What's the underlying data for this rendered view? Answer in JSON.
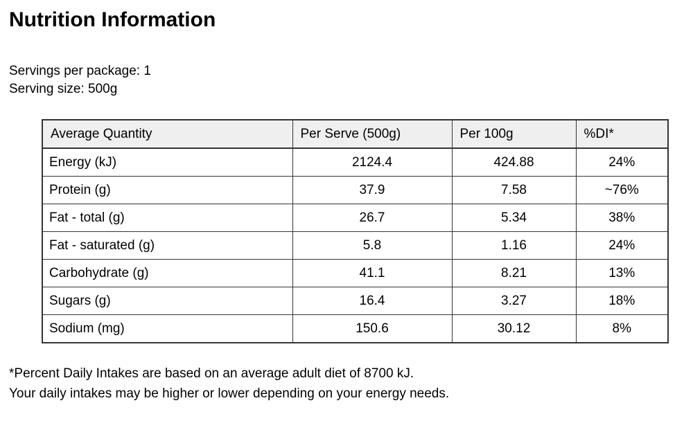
{
  "title": "Nutrition Information",
  "serving_info": {
    "servings_per_package": "Servings per package: 1",
    "serving_size": "Serving size: 500g"
  },
  "table": {
    "headers": [
      "Average Quantity",
      "Per Serve (500g)",
      "Per 100g",
      "%DI*"
    ],
    "rows": [
      [
        "Energy (kJ)",
        "2124.4",
        "424.88",
        "24%"
      ],
      [
        "Protein (g)",
        "37.9",
        "7.58",
        "~76%"
      ],
      [
        "Fat - total (g)",
        "26.7",
        "5.34",
        "38%"
      ],
      [
        "Fat - saturated (g)",
        "5.8",
        "1.16",
        "24%"
      ],
      [
        "Carbohydrate (g)",
        "41.1",
        "8.21",
        "13%"
      ],
      [
        "Sugars (g)",
        "16.4",
        "3.27",
        "18%"
      ],
      [
        "Sodium (mg)",
        "150.6",
        "30.12",
        "8%"
      ]
    ]
  },
  "footnote": {
    "line1": "*Percent Daily Intakes are based on an average adult diet of 8700 kJ.",
    "line2": "Your daily intakes may be higher or lower depending on your energy needs."
  },
  "colors": {
    "header_background": "#efefef",
    "table_border": "#333333",
    "text": "#000000",
    "page_background": "#ffffff"
  }
}
